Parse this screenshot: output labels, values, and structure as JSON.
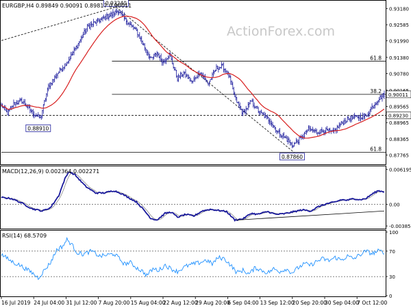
{
  "colors": {
    "background": "#ffffff",
    "candle": "#1a1a9c",
    "ma": "#d81e1e",
    "signal": "#888888",
    "rsi": "#1e90ff",
    "level": "#000000",
    "gridline": "#000000",
    "watermark": "#c8c8c8",
    "frame": "#000000",
    "label_bg": "#ffffff",
    "label_border": "#1a1a9c"
  },
  "watermark": "ActionForex.com",
  "chart_data": [
    {
      "type": "candlestick",
      "title": "EURGBP,H4 0.89849 0.90091 0.89817 0.90011",
      "ylim": [
        0.8745,
        0.9345
      ],
      "y_ticks": [
        {
          "value": 0.9318,
          "label": "0.93180"
        },
        {
          "value": 0.92585,
          "label": "0.92585"
        },
        {
          "value": 0.9199,
          "label": "0.91990"
        },
        {
          "value": 0.9138,
          "label": "0.91380"
        },
        {
          "value": 0.9078,
          "label": "0.90780"
        },
        {
          "value": 0.90165,
          "label": "0.90165"
        },
        {
          "value": 0.89565,
          "label": "0.89565"
        },
        {
          "value": 0.88965,
          "label": "0.88965"
        },
        {
          "value": 0.88365,
          "label": "0.88365"
        },
        {
          "value": 0.87765,
          "label": "0.87765"
        }
      ],
      "x_ticks": [
        "16 Jul 2019",
        "24 Jul 04:00",
        "31 Jul 12:00",
        "7 Aug 20:00",
        "15 Aug 04:00",
        "22 Aug 12:00",
        "29 Aug 20:00",
        "6 Sep 04:00",
        "13 Sep 12:00",
        "20 Sep 20:00",
        "30 Sep 04:00",
        "7 Oct 12:00"
      ],
      "price_anchors": [
        [
          0,
          0.896
        ],
        [
          6,
          0.893
        ],
        [
          12,
          0.8966
        ],
        [
          20,
          0.8978
        ],
        [
          30,
          0.8935
        ],
        [
          38,
          0.8912
        ],
        [
          46,
          0.903
        ],
        [
          56,
          0.9085
        ],
        [
          66,
          0.913
        ],
        [
          76,
          0.9195
        ],
        [
          84,
          0.925
        ],
        [
          92,
          0.9268
        ],
        [
          100,
          0.9283
        ],
        [
          108,
          0.9297
        ],
        [
          114,
          0.9312
        ],
        [
          118,
          0.929
        ],
        [
          124,
          0.9265
        ],
        [
          132,
          0.9235
        ],
        [
          140,
          0.9175
        ],
        [
          146,
          0.913
        ],
        [
          152,
          0.9155
        ],
        [
          158,
          0.912
        ],
        [
          164,
          0.915
        ],
        [
          172,
          0.906
        ],
        [
          178,
          0.908
        ],
        [
          186,
          0.9045
        ],
        [
          194,
          0.9085
        ],
        [
          202,
          0.904
        ],
        [
          210,
          0.9098
        ],
        [
          216,
          0.9105
        ],
        [
          222,
          0.9072
        ],
        [
          228,
          0.899
        ],
        [
          236,
          0.893
        ],
        [
          244,
          0.8975
        ],
        [
          252,
          0.8935
        ],
        [
          262,
          0.8905
        ],
        [
          270,
          0.8862
        ],
        [
          278,
          0.8838
        ],
        [
          284,
          0.8812
        ],
        [
          292,
          0.8836
        ],
        [
          300,
          0.8872
        ],
        [
          308,
          0.8862
        ],
        [
          316,
          0.8868
        ],
        [
          324,
          0.886
        ],
        [
          332,
          0.8893
        ],
        [
          340,
          0.8912
        ],
        [
          348,
          0.8918
        ],
        [
          356,
          0.892
        ],
        [
          362,
          0.8955
        ],
        [
          368,
          0.8982
        ],
        [
          374,
          0.9001
        ]
      ],
      "levels": [
        {
          "value": 0.9124,
          "label": "61.8",
          "start_index": 108
        },
        {
          "value": 0.9001,
          "label": "38.2",
          "start_index": 108
        },
        {
          "value": 0.8923,
          "label": "",
          "start_index": 0
        },
        {
          "value": 0.8787,
          "label": "61.8",
          "start_index": 0
        }
      ],
      "current_price_labels": [
        {
          "value": 0.90011,
          "label": "0.90011"
        },
        {
          "value": 0.8923,
          "label": "0.89230"
        }
      ],
      "annotations": [
        {
          "label": "0.93240",
          "index": 112,
          "value": 0.9324
        },
        {
          "label": "0.88910",
          "index": 36,
          "value": 0.8891
        },
        {
          "label": "0.87860",
          "index": 284,
          "value": 0.8786
        }
      ],
      "trendlines": [
        {
          "from": [
            0,
            0.92
          ],
          "to": [
            112,
            0.9324
          ],
          "dashed": true
        },
        {
          "from": [
            112,
            0.9324
          ],
          "to": [
            286,
            0.8786
          ],
          "dashed": true
        }
      ]
    },
    {
      "type": "line",
      "title": "MACD(12,26,9) 0.002364 0.002271",
      "ylim": [
        -0.0042,
        0.0066
      ],
      "y_ticks": [
        {
          "value": 0.006195,
          "label": "0.006195"
        },
        {
          "value": 0.0,
          "label": "0.00"
        },
        {
          "value": -0.003851,
          "label": "-0.003851"
        }
      ],
      "series": [
        {
          "anchors": [
            [
              0,
              0.0012
            ],
            [
              10,
              0.001
            ],
            [
              20,
              0.0002
            ],
            [
              30,
              -0.0008
            ],
            [
              40,
              -0.0012
            ],
            [
              48,
              -0.0006
            ],
            [
              56,
              0.0015
            ],
            [
              62,
              0.0045
            ],
            [
              66,
              0.0058
            ],
            [
              72,
              0.0052
            ],
            [
              82,
              0.0032
            ],
            [
              92,
              0.002
            ],
            [
              100,
              0.002
            ],
            [
              110,
              0.0024
            ],
            [
              116,
              0.002
            ],
            [
              124,
              0.0012
            ],
            [
              132,
              0.0004
            ],
            [
              140,
              -0.0012
            ],
            [
              146,
              -0.0025
            ],
            [
              152,
              -0.0028
            ],
            [
              160,
              -0.0016
            ],
            [
              166,
              -0.0014
            ],
            [
              172,
              -0.0023
            ],
            [
              180,
              -0.0018
            ],
            [
              188,
              -0.0021
            ],
            [
              196,
              -0.0012
            ],
            [
              204,
              -0.0009
            ],
            [
              212,
              -0.0011
            ],
            [
              220,
              -0.0013
            ],
            [
              228,
              -0.0028
            ],
            [
              236,
              -0.0026
            ],
            [
              244,
              -0.0016
            ],
            [
              250,
              -0.0018
            ],
            [
              260,
              -0.0013
            ],
            [
              268,
              -0.0018
            ],
            [
              276,
              -0.0017
            ],
            [
              286,
              -0.0013
            ],
            [
              294,
              -0.001
            ],
            [
              302,
              -0.0012
            ],
            [
              310,
              -0.0004
            ],
            [
              318,
              0.0001
            ],
            [
              326,
              0.0004
            ],
            [
              332,
              0.0008
            ],
            [
              338,
              0.0007
            ],
            [
              344,
              0.001
            ],
            [
              350,
              0.0008
            ],
            [
              356,
              0.001
            ],
            [
              362,
              0.0018
            ],
            [
              368,
              0.0024
            ],
            [
              374,
              0.0022
            ]
          ]
        },
        {
          "lag": 5
        }
      ],
      "trendline": {
        "from": [
          230,
          -0.0028
        ],
        "to": [
          374,
          -0.0012
        ]
      }
    },
    {
      "type": "line",
      "title": "RSI(14) 68.5709",
      "ylim": [
        0,
        100
      ],
      "y_ticks": [
        {
          "value": 100,
          "label": "100"
        },
        {
          "value": 70,
          "label": "70"
        },
        {
          "value": 30,
          "label": "30"
        },
        {
          "value": 0,
          "label": "0"
        }
      ],
      "levels": [
        70,
        30
      ],
      "anchors": [
        [
          0,
          65
        ],
        [
          6,
          58
        ],
        [
          12,
          52
        ],
        [
          18,
          48
        ],
        [
          24,
          42
        ],
        [
          30,
          36
        ],
        [
          36,
          28
        ],
        [
          42,
          40
        ],
        [
          48,
          52
        ],
        [
          54,
          72
        ],
        [
          60,
          78
        ],
        [
          64,
          88
        ],
        [
          68,
          82
        ],
        [
          74,
          68
        ],
        [
          80,
          65
        ],
        [
          88,
          70
        ],
        [
          96,
          62
        ],
        [
          104,
          64
        ],
        [
          110,
          66
        ],
        [
          114,
          60
        ],
        [
          120,
          50
        ],
        [
          126,
          52
        ],
        [
          132,
          44
        ],
        [
          138,
          38
        ],
        [
          142,
          32
        ],
        [
          148,
          42
        ],
        [
          154,
          40
        ],
        [
          160,
          48
        ],
        [
          166,
          42
        ],
        [
          172,
          38
        ],
        [
          180,
          46
        ],
        [
          188,
          50
        ],
        [
          194,
          52
        ],
        [
          200,
          56
        ],
        [
          206,
          50
        ],
        [
          212,
          60
        ],
        [
          218,
          58
        ],
        [
          224,
          48
        ],
        [
          230,
          36
        ],
        [
          236,
          40
        ],
        [
          242,
          34
        ],
        [
          248,
          44
        ],
        [
          254,
          40
        ],
        [
          260,
          36
        ],
        [
          266,
          42
        ],
        [
          272,
          38
        ],
        [
          278,
          42
        ],
        [
          284,
          36
        ],
        [
          290,
          44
        ],
        [
          296,
          50
        ],
        [
          302,
          48
        ],
        [
          308,
          54
        ],
        [
          314,
          58
        ],
        [
          320,
          55
        ],
        [
          326,
          60
        ],
        [
          332,
          56
        ],
        [
          338,
          62
        ],
        [
          344,
          58
        ],
        [
          350,
          64
        ],
        [
          356,
          70
        ],
        [
          362,
          66
        ],
        [
          368,
          70
        ],
        [
          374,
          68.57
        ]
      ]
    }
  ]
}
